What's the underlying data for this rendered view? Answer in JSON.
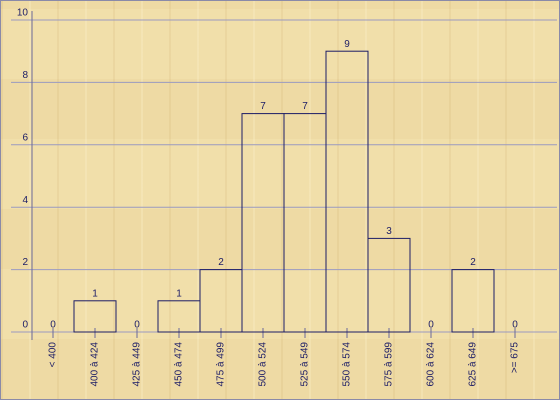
{
  "chart_data": {
    "type": "bar",
    "categories": [
      "< 400",
      "400 à 424",
      "425 à 449",
      "450 à 474",
      "475 à 499",
      "500 à 524",
      "525 à 549",
      "550 à 574",
      "575 à 599",
      "600 à 624",
      "625 à 649",
      ">= 675"
    ],
    "values": [
      0,
      1,
      0,
      1,
      2,
      7,
      7,
      9,
      3,
      0,
      2,
      0
    ],
    "color": "#1c1c66",
    "ylim": [
      0,
      10
    ],
    "yticks": [
      0,
      2,
      4,
      6,
      8,
      10
    ],
    "grid": true
  }
}
